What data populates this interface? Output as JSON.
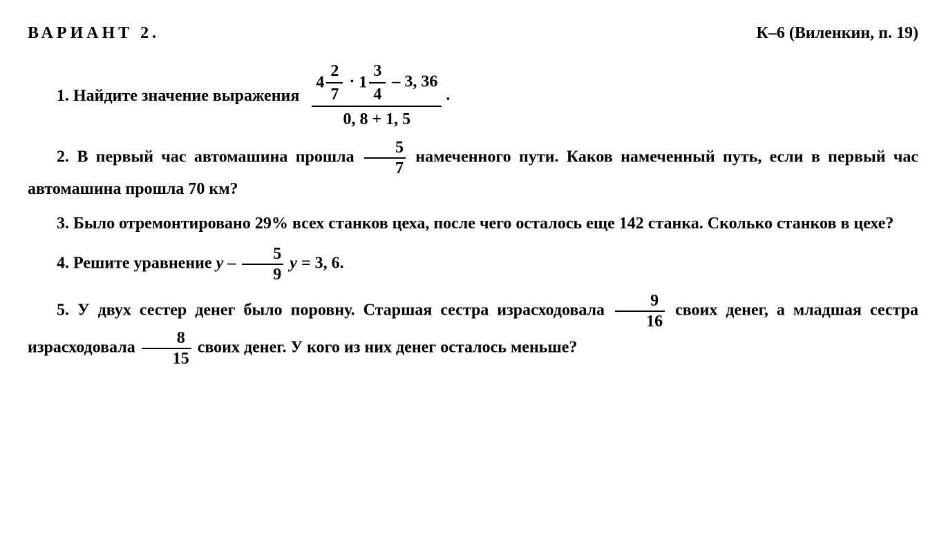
{
  "header": {
    "variant": "ВАРИАНТ 2.",
    "reference": "К–6 (Виленкин, п. 19)"
  },
  "problems": {
    "p1": {
      "num": "1.",
      "text": "Найдите значение выражения",
      "expr_num_m1_whole": "4",
      "expr_num_m1_top": "2",
      "expr_num_m1_bot": "7",
      "expr_num_dot": "·",
      "expr_num_m2_whole": "1",
      "expr_num_m2_top": "3",
      "expr_num_m2_bot": "4",
      "expr_num_minus": "– 3, 36",
      "expr_den": "0, 8 + 1, 5",
      "period": "."
    },
    "p2": {
      "num": "2.",
      "text_before": "В первый час автомашина прошла",
      "frac_top": "5",
      "frac_bot": "7",
      "text_after": "намеченного пути. Каков намеченный путь, если в первый час автомашина прошла 70 км?"
    },
    "p3": {
      "num": "3.",
      "text": "Было отремонтировано 29% всех станков цеха, после чего осталось еще 142 станка. Сколько станков в цехе?"
    },
    "p4": {
      "num": "4.",
      "text": "Решите уравнение",
      "eq_y1": "y",
      "eq_minus": "–",
      "eq_frac_top": "5",
      "eq_frac_bot": "9",
      "eq_y2": "y",
      "eq_eq": "= 3, 6.",
      "space": "  "
    },
    "p5": {
      "num": "5.",
      "text_a": "У двух сестер денег было поровну. Старшая сестра израсходовала",
      "frac1_top": "9",
      "frac1_bot": "16",
      "text_b": "своих денег, а младшая сестра израсходовала",
      "frac2_top": "8",
      "frac2_bot": "15",
      "text_c": "своих денег. У кого из них денег осталось меньше?"
    }
  },
  "style": {
    "background_color": "#ffffff",
    "text_color": "#000000",
    "font_size_pt": 24,
    "font_family": "Times New Roman serif",
    "font_weight": "bold"
  }
}
